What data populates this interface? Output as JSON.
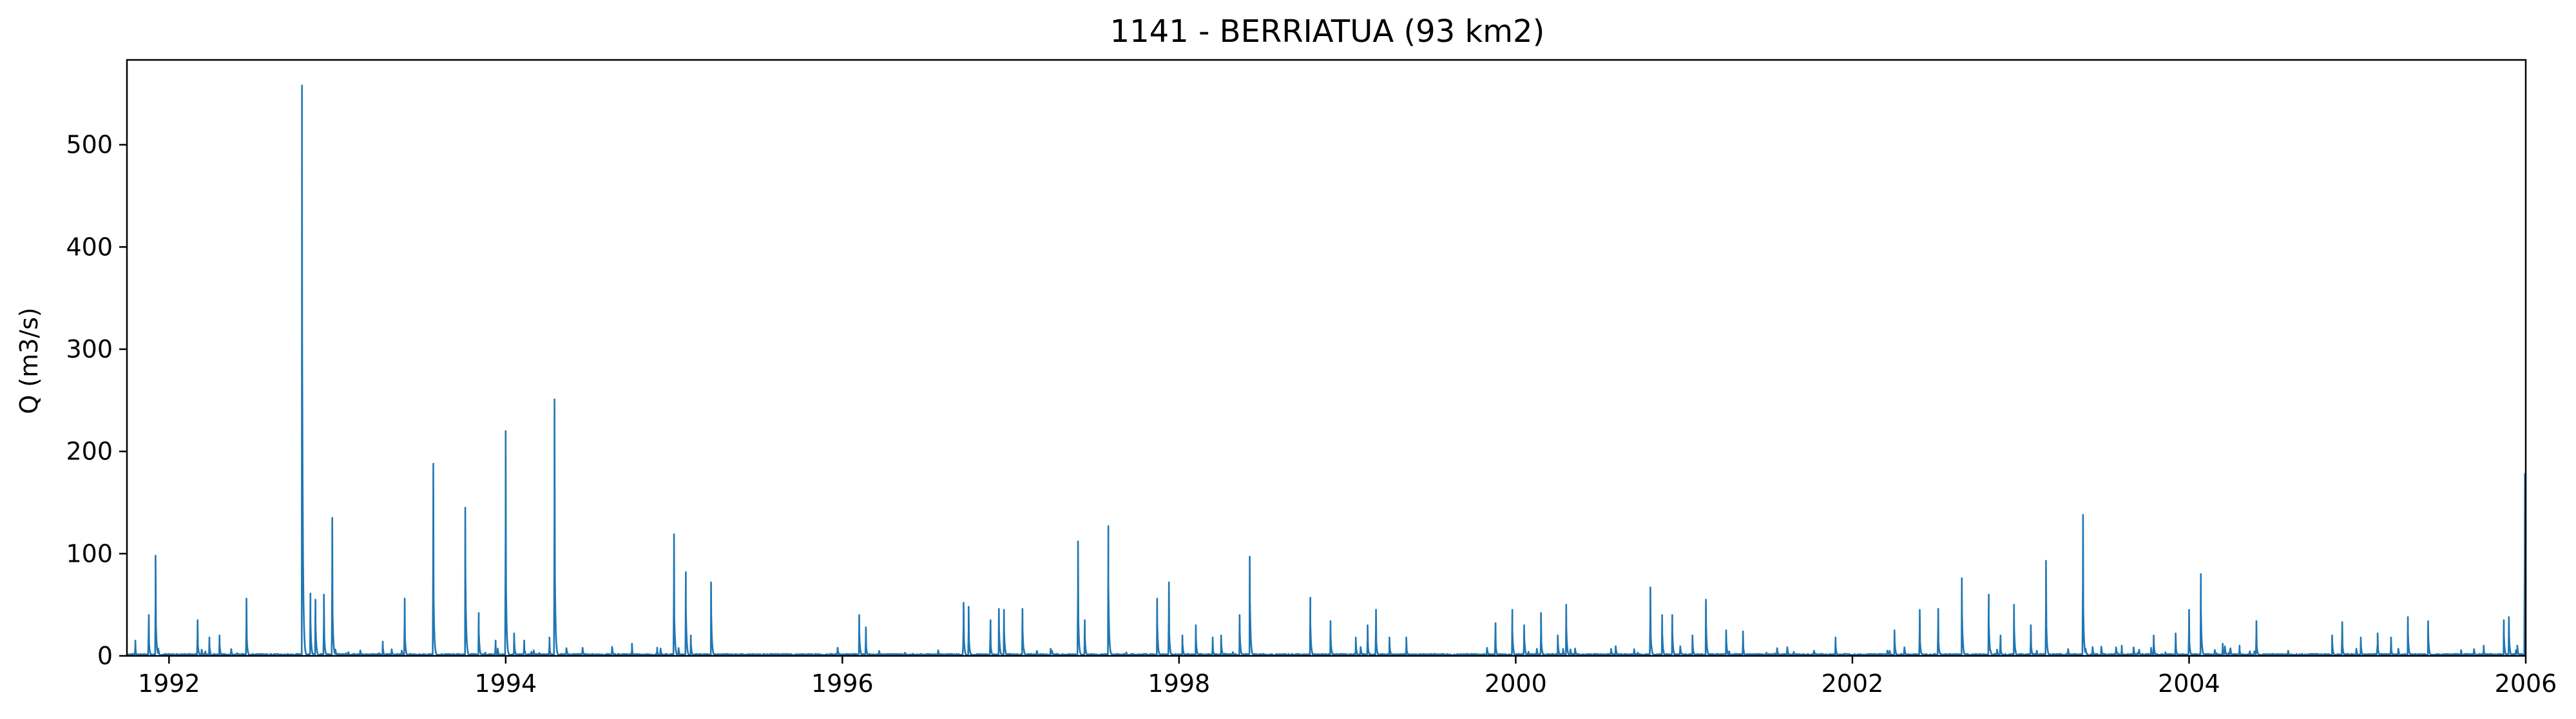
{
  "chart_data": {
    "type": "line",
    "title": "1141 - BERRIATUA (93 km2)",
    "xlabel": "",
    "ylabel": "Q (m3/s)",
    "xlim": [
      1991.75,
      2006.0
    ],
    "ylim": [
      0,
      583
    ],
    "xticks": [
      1992,
      1994,
      1996,
      1998,
      2000,
      2002,
      2004,
      2006
    ],
    "xtick_labels": [
      "1992",
      "1994",
      "1996",
      "1998",
      "2000",
      "2002",
      "2004",
      "2006"
    ],
    "yticks": [
      0,
      100,
      200,
      300,
      400,
      500
    ],
    "ytick_labels": [
      "0",
      "100",
      "200",
      "300",
      "400",
      "500"
    ],
    "grid": false,
    "legend": "none",
    "series": [
      {
        "color": "#1f77b4",
        "peaks": [
          [
            1991.8,
            15
          ],
          [
            1991.88,
            40
          ],
          [
            1991.92,
            98
          ],
          [
            1992.17,
            35
          ],
          [
            1992.24,
            18
          ],
          [
            1992.3,
            20
          ],
          [
            1992.46,
            56
          ],
          [
            1992.79,
            558
          ],
          [
            1992.84,
            61
          ],
          [
            1992.87,
            55
          ],
          [
            1992.92,
            60
          ],
          [
            1992.97,
            135
          ],
          [
            1993.27,
            14
          ],
          [
            1993.4,
            56
          ],
          [
            1993.57,
            188
          ],
          [
            1993.76,
            145
          ],
          [
            1993.84,
            42
          ],
          [
            1993.94,
            15
          ],
          [
            1994.0,
            220
          ],
          [
            1994.05,
            22
          ],
          [
            1994.11,
            15
          ],
          [
            1994.26,
            18
          ],
          [
            1994.29,
            251
          ],
          [
            1994.75,
            12
          ],
          [
            1994.9,
            8
          ],
          [
            1995.0,
            119
          ],
          [
            1995.07,
            82
          ],
          [
            1995.1,
            20
          ],
          [
            1995.22,
            72
          ],
          [
            1996.1,
            40
          ],
          [
            1996.14,
            28
          ],
          [
            1996.72,
            52
          ],
          [
            1996.75,
            48
          ],
          [
            1996.88,
            35
          ],
          [
            1996.93,
            46
          ],
          [
            1996.96,
            45
          ],
          [
            1997.07,
            46
          ],
          [
            1997.4,
            112
          ],
          [
            1997.44,
            35
          ],
          [
            1997.58,
            127
          ],
          [
            1997.87,
            56
          ],
          [
            1997.94,
            72
          ],
          [
            1998.02,
            20
          ],
          [
            1998.1,
            30
          ],
          [
            1998.2,
            18
          ],
          [
            1998.25,
            20
          ],
          [
            1998.36,
            40
          ],
          [
            1998.42,
            97
          ],
          [
            1998.78,
            57
          ],
          [
            1998.9,
            34
          ],
          [
            1999.05,
            18
          ],
          [
            1999.12,
            30
          ],
          [
            1999.17,
            45
          ],
          [
            1999.25,
            18
          ],
          [
            1999.35,
            18
          ],
          [
            1999.88,
            32
          ],
          [
            1999.98,
            45
          ],
          [
            2000.05,
            30
          ],
          [
            2000.15,
            42
          ],
          [
            2000.25,
            20
          ],
          [
            2000.3,
            50
          ],
          [
            2000.8,
            67
          ],
          [
            2000.87,
            40
          ],
          [
            2000.93,
            40
          ],
          [
            2001.05,
            20
          ],
          [
            2001.13,
            55
          ],
          [
            2001.25,
            25
          ],
          [
            2001.35,
            24
          ],
          [
            2001.9,
            18
          ],
          [
            2002.25,
            25
          ],
          [
            2002.4,
            45
          ],
          [
            2002.51,
            46
          ],
          [
            2002.65,
            76
          ],
          [
            2002.81,
            60
          ],
          [
            2002.88,
            20
          ],
          [
            2002.96,
            50
          ],
          [
            2003.06,
            30
          ],
          [
            2003.15,
            93
          ],
          [
            2003.37,
            138
          ],
          [
            2003.6,
            10
          ],
          [
            2003.79,
            20
          ],
          [
            2003.92,
            22
          ],
          [
            2004.0,
            45
          ],
          [
            2004.07,
            80
          ],
          [
            2004.2,
            12
          ],
          [
            2004.3,
            10
          ],
          [
            2004.4,
            34
          ],
          [
            2004.85,
            20
          ],
          [
            2004.91,
            33
          ],
          [
            2005.02,
            18
          ],
          [
            2005.12,
            22
          ],
          [
            2005.2,
            18
          ],
          [
            2005.3,
            38
          ],
          [
            2005.42,
            34
          ],
          [
            2005.75,
            10
          ],
          [
            2005.87,
            35
          ],
          [
            2005.9,
            38
          ],
          [
            2005.95,
            10
          ],
          [
            2005.995,
            178
          ]
        ]
      }
    ]
  }
}
